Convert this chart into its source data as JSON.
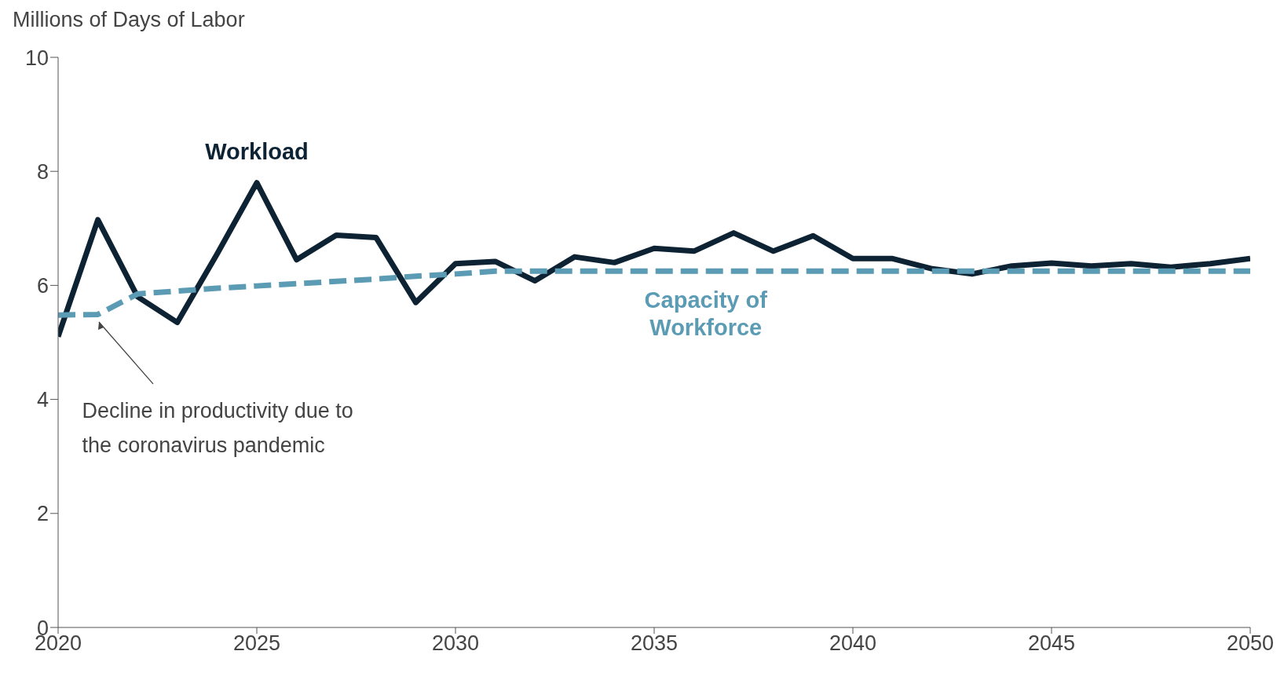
{
  "chart_data": {
    "type": "line",
    "ylabel": "Millions of Days of Labor",
    "x": [
      2020,
      2021,
      2022,
      2023,
      2024,
      2025,
      2026,
      2027,
      2028,
      2029,
      2030,
      2031,
      2032,
      2033,
      2034,
      2035,
      2036,
      2037,
      2038,
      2039,
      2040,
      2041,
      2042,
      2043,
      2044,
      2045,
      2046,
      2047,
      2048,
      2049,
      2050
    ],
    "series": [
      {
        "name": "Workload",
        "color": "#0d2233",
        "line_style": "solid",
        "values": [
          5.1,
          7.15,
          5.8,
          5.35,
          6.55,
          7.8,
          6.45,
          6.88,
          6.84,
          5.7,
          6.38,
          6.42,
          6.08,
          6.5,
          6.4,
          6.65,
          6.6,
          6.92,
          6.6,
          6.87,
          6.47,
          6.47,
          6.29,
          6.2,
          6.34,
          6.39,
          6.34,
          6.38,
          6.32,
          6.38,
          6.47
        ]
      },
      {
        "name": "Capacity of Workforce",
        "color": "#5b9bb4",
        "line_style": "dashed",
        "values": [
          5.48,
          5.49,
          5.85,
          5.9,
          5.95,
          5.99,
          6.03,
          6.07,
          6.11,
          6.16,
          6.2,
          6.25,
          6.25,
          6.25,
          6.25,
          6.25,
          6.25,
          6.25,
          6.25,
          6.25,
          6.25,
          6.25,
          6.25,
          6.25,
          6.25,
          6.25,
          6.25,
          6.25,
          6.25,
          6.25,
          6.25
        ]
      }
    ],
    "xlim": [
      2020,
      2050
    ],
    "xticks": [
      2020,
      2025,
      2030,
      2035,
      2040,
      2045,
      2050
    ],
    "ylim": [
      0,
      10
    ],
    "yticks": [
      0,
      2,
      4,
      6,
      8,
      10
    ],
    "grid": false,
    "legend": false,
    "marker": "none",
    "annotations": [
      "Decline in productivity due to the coronavirus pandemic"
    ]
  }
}
